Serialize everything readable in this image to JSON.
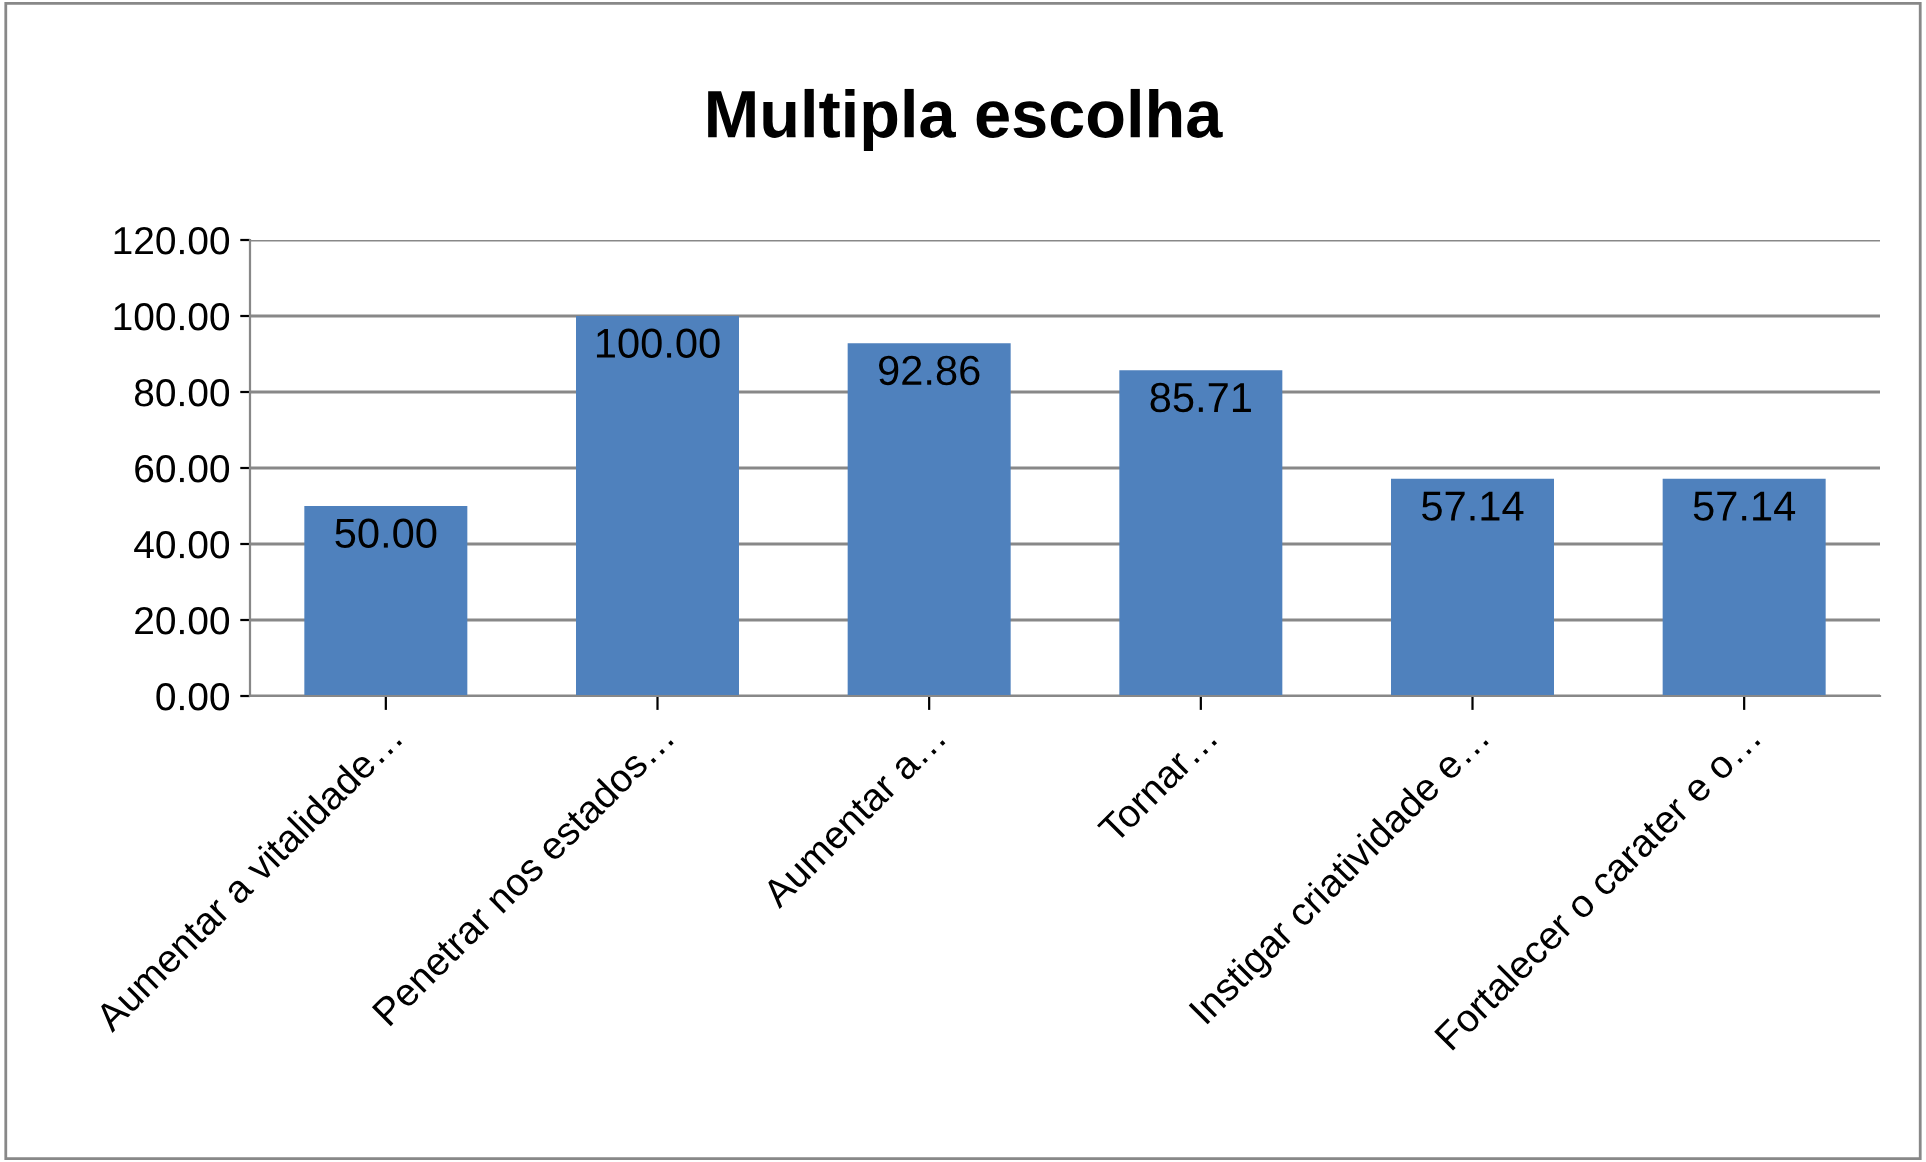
{
  "chart_data": {
    "type": "bar",
    "title": "Multipla escolha",
    "categories": [
      "Aumentar a vitalidade…",
      "Penetrar nos estados…",
      "Aumentar a…",
      "Tornar…",
      "Instigar criatividade e…",
      "Fortalecer o carater e o…"
    ],
    "values": [
      50.0,
      100.0,
      92.86,
      85.71,
      57.14,
      57.14
    ],
    "value_labels": [
      "50.00",
      "100.00",
      "92.86",
      "85.71",
      "57.14",
      "57.14"
    ],
    "color": "#4f81bd",
    "ylim": [
      0,
      120
    ],
    "yticks": [
      {
        "value": 0,
        "label": "0.00"
      },
      {
        "value": 20,
        "label": "20.00"
      },
      {
        "value": 40,
        "label": "40.00"
      },
      {
        "value": 60,
        "label": "60.00"
      },
      {
        "value": 80,
        "label": "80.00"
      },
      {
        "value": 100,
        "label": "100.00"
      },
      {
        "value": 120,
        "label": "120.00"
      }
    ],
    "grid": "y",
    "legend": false
  }
}
